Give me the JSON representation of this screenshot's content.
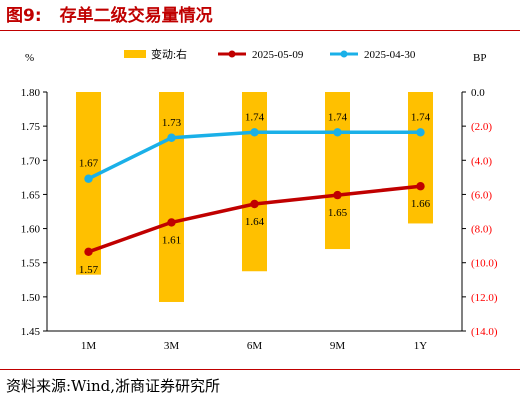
{
  "figure": {
    "number": "图9:",
    "title": "存单二级交易量情况",
    "source": "资料来源:Wind,浙商证券研究所"
  },
  "colors": {
    "brand_red": "#c00000",
    "bar": "#ffc000",
    "series_0509": "#c00000",
    "series_0430": "#1ab0e8",
    "right_axis_negative": "#ff0000"
  },
  "chart_data": {
    "type": "bar+line",
    "categories": [
      "1M",
      "3M",
      "6M",
      "9M",
      "1Y"
    ],
    "left_axis": {
      "unit_label": "%",
      "ylim": [
        1.45,
        1.8
      ],
      "ticks": [
        "1.45",
        "1.50",
        "1.55",
        "1.60",
        "1.65",
        "1.70",
        "1.75",
        "1.80"
      ]
    },
    "right_axis": {
      "unit_label": "BP",
      "ylim": [
        -14.0,
        0.0
      ],
      "ticks": [
        "0.0",
        "(2.0)",
        "(4.0)",
        "(6.0)",
        "(8.0)",
        "(10.0)",
        "(12.0)",
        "(14.0)"
      ]
    },
    "bars": {
      "name": "变动:右",
      "values": [
        -10.7,
        -12.3,
        -10.5,
        -9.2,
        -7.7
      ]
    },
    "series": [
      {
        "name": "2025-05-09",
        "color": "#c00000",
        "values": [
          1.566,
          1.609,
          1.636,
          1.649,
          1.662
        ],
        "labels": [
          "1.57",
          "1.61",
          "1.64",
          "1.65",
          "1.66"
        ]
      },
      {
        "name": "2025-04-30",
        "color": "#1ab0e8",
        "values": [
          1.673,
          1.733,
          1.741,
          1.741,
          1.741
        ],
        "labels": [
          "1.67",
          "1.73",
          "1.74",
          "1.74",
          "1.74"
        ]
      }
    ],
    "legend_position": "top",
    "grid": false
  }
}
